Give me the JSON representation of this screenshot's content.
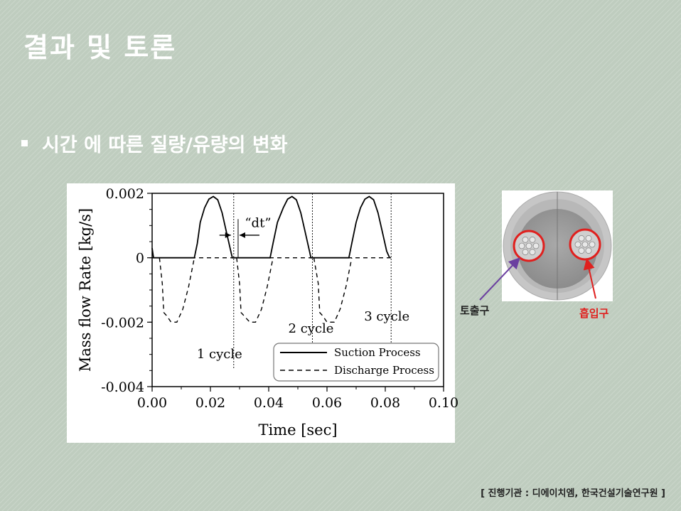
{
  "slide": {
    "title": "결과 및 토론",
    "bullet": "시간 에 따른 질량/유량의 변화",
    "footer": "[ 진행기관 : 디에이치엠, 한국건설기술연구원 ]"
  },
  "figure": {
    "outlet_label": "토출구",
    "inlet_label": "흡입구",
    "outlet_color": "#222222",
    "inlet_color": "#e0201e",
    "outlet_arrow_color": "#6b3fa0",
    "inlet_arrow_color": "#e0201e",
    "ring_color": "#e0201e"
  },
  "chart_data": {
    "type": "line",
    "xlabel": "Time [sec]",
    "ylabel": "Mass flow Rate [kg/s]",
    "xlim": [
      0.0,
      0.1
    ],
    "ylim": [
      -0.004,
      0.002
    ],
    "xticks": [
      "0.00",
      "0.02",
      "0.04",
      "0.06",
      "0.08",
      "0.10"
    ],
    "yticks": [
      "0.002",
      "0",
      "-0.002",
      "-0.004"
    ],
    "xtick_values": [
      0.0,
      0.02,
      0.04,
      0.06,
      0.08,
      0.1
    ],
    "ytick_values": [
      0.002,
      0,
      -0.002,
      -0.004
    ],
    "legend": {
      "placement": "bottom-right"
    },
    "series": [
      {
        "name": "Suction Process",
        "style": "solid",
        "x": [
          0.0,
          0.0005,
          0.001,
          0.0145,
          0.0155,
          0.0165,
          0.018,
          0.0195,
          0.021,
          0.0225,
          0.024,
          0.0255,
          0.027,
          0.0275,
          0.0405,
          0.0415,
          0.043,
          0.045,
          0.0465,
          0.048,
          0.0495,
          0.051,
          0.0525,
          0.054,
          0.0545,
          0.0675,
          0.0685,
          0.07,
          0.0715,
          0.073,
          0.0745,
          0.076,
          0.0775,
          0.079,
          0.0805,
          0.0815
        ],
        "y": [
          0.0003,
          0.0,
          0.0,
          0.0,
          0.00045,
          0.0011,
          0.00155,
          0.00182,
          0.0019,
          0.0018,
          0.0014,
          0.0008,
          0.0002,
          0.0,
          0.0,
          0.00045,
          0.0011,
          0.00155,
          0.00182,
          0.0019,
          0.0018,
          0.0014,
          0.0008,
          0.0002,
          0.0,
          0.0,
          0.00045,
          0.0011,
          0.00155,
          0.00182,
          0.0019,
          0.0018,
          0.0014,
          0.0008,
          0.0002,
          0.0
        ]
      },
      {
        "name": "Discharge Process",
        "style": "dashed",
        "x": [
          0.0,
          0.0275,
          0.0025,
          0.0035,
          0.004,
          0.005,
          0.0065,
          0.0085,
          0.0105,
          0.0125,
          0.0145,
          0.029,
          0.03,
          0.0305,
          0.0315,
          0.0335,
          0.0355,
          0.0375,
          0.0395,
          0.0415,
          0.0555,
          0.057,
          0.0575,
          0.0585,
          0.06,
          0.0625,
          0.0645,
          0.0665,
          0.0685,
          0.0705,
          0.082
        ],
        "y": [
          0.0,
          0.0,
          0.0,
          -0.0008,
          -0.0017,
          -0.0018,
          -0.002,
          -0.002,
          -0.0016,
          -0.0009,
          0.0,
          0.0,
          -0.0008,
          -0.0017,
          -0.0018,
          -0.002,
          -0.002,
          -0.0016,
          -0.0009,
          0.0,
          0.0,
          -0.0008,
          -0.0017,
          -0.0018,
          -0.002,
          -0.002,
          -0.0016,
          -0.0009,
          0.0,
          0.0,
          0.0
        ]
      }
    ],
    "annotations": [
      {
        "text": "1 cycle",
        "x": 0.028
      },
      {
        "text": "2 cycle",
        "x": 0.055
      },
      {
        "text": "3 cycle",
        "x": 0.082
      },
      {
        "text": "“dt”",
        "x": 0.0295
      }
    ]
  }
}
